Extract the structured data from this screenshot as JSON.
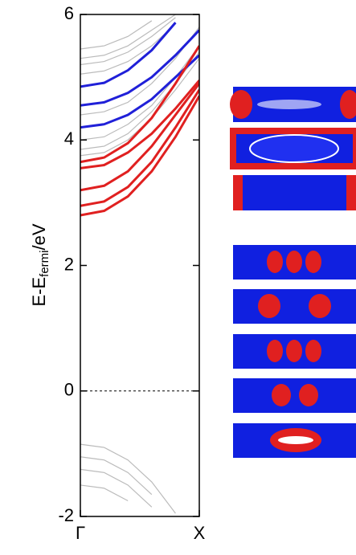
{
  "chart_data": {
    "type": "line",
    "ylabel": [
      "E-E",
      "fermi",
      "/eV"
    ],
    "x": [
      0,
      0.2,
      0.4,
      0.6,
      0.8,
      1.0
    ],
    "xlim": [
      0,
      1
    ],
    "xticks": [
      {
        "value": 0,
        "label": "Γ"
      },
      {
        "value": 1,
        "label": "X"
      }
    ],
    "ylim": [
      -2,
      6
    ],
    "yticks": [
      -2,
      0,
      2,
      4,
      6
    ],
    "zero_line": true,
    "series": [
      {
        "color": "#bbbbbb",
        "values": [
          5.45,
          5.5,
          5.65,
          5.9,
          null,
          null
        ]
      },
      {
        "color": "#bbbbbb",
        "values": [
          5.3,
          5.35,
          5.5,
          5.75,
          6.0,
          null
        ]
      },
      {
        "color": "#bbbbbb",
        "values": [
          5.2,
          5.25,
          5.4,
          5.65,
          5.95,
          null
        ]
      },
      {
        "color": "#bbbbbb",
        "values": [
          5.05,
          5.1,
          5.25,
          5.5,
          5.85,
          null
        ]
      },
      {
        "color": "#bbbbbb",
        "values": [
          4.4,
          4.45,
          4.6,
          4.9,
          5.3,
          5.8
        ]
      },
      {
        "color": "#bbbbbb",
        "values": [
          4.0,
          4.05,
          4.25,
          4.55,
          5.0,
          5.5
        ]
      },
      {
        "color": "#bbbbbb",
        "values": [
          3.85,
          3.9,
          4.1,
          4.45,
          4.9,
          5.4
        ]
      },
      {
        "color": "#bbbbbb",
        "values": [
          3.75,
          3.8,
          4.0,
          4.35,
          4.8,
          5.3
        ]
      },
      {
        "color": "#2020d8",
        "values": [
          4.85,
          4.91,
          5.11,
          5.43,
          5.87,
          null
        ]
      },
      {
        "color": "#2020d8",
        "values": [
          4.55,
          4.6,
          4.75,
          5.0,
          5.35,
          5.75
        ]
      },
      {
        "color": "#2020d8",
        "values": [
          4.2,
          4.25,
          4.4,
          4.65,
          5.0,
          5.35
        ]
      },
      {
        "color": "#e02020",
        "values": [
          3.65,
          3.72,
          3.95,
          4.35,
          4.9,
          5.5
        ]
      },
      {
        "color": "#e02020",
        "values": [
          3.55,
          3.6,
          3.8,
          4.1,
          4.5,
          4.95
        ]
      },
      {
        "color": "#e02020",
        "values": [
          3.2,
          3.27,
          3.5,
          3.9,
          4.4,
          4.9
        ]
      },
      {
        "color": "#e02020",
        "values": [
          2.95,
          3.02,
          3.25,
          3.65,
          4.2,
          4.8
        ]
      },
      {
        "color": "#e02020",
        "values": [
          2.8,
          2.87,
          3.1,
          3.5,
          4.05,
          4.7
        ]
      },
      {
        "color": "#bbbbbb",
        "values": [
          -0.85,
          -0.9,
          -1.1,
          -1.45,
          -1.95,
          null
        ]
      },
      {
        "color": "#bbbbbb",
        "values": [
          -1.05,
          -1.1,
          -1.3,
          -1.65,
          null,
          null
        ]
      },
      {
        "color": "#bbbbbb",
        "values": [
          -1.25,
          -1.3,
          -1.5,
          -1.85,
          null,
          null
        ]
      },
      {
        "color": "#bbbbbb",
        "values": [
          -1.5,
          -1.55,
          -1.75,
          null,
          null,
          null
        ]
      }
    ]
  }
}
